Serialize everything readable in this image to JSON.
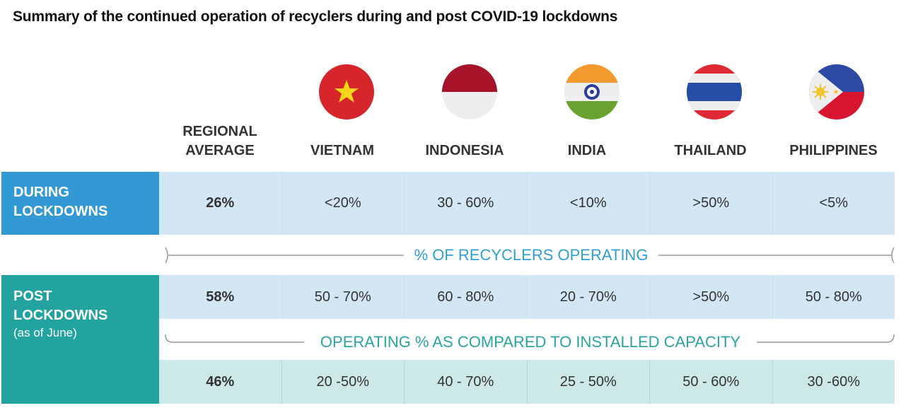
{
  "title": "Summary of the continued operation of recyclers during and post COVID-19 lockdowns",
  "colors": {
    "during_label_bg": "#3399d4",
    "post_label_bg": "#22a39f",
    "during_band_bg": "#d3e6f3",
    "post_band_bg": "#cce8e7",
    "bracket_blue": "#2e9fd3",
    "bracket_teal": "#2aa4a1"
  },
  "columns": {
    "regional_l1": "REGIONAL",
    "regional_l2": "AVERAGE",
    "vietnam": "VIETNAM",
    "indonesia": "INDONESIA",
    "india": "INDIA",
    "thailand": "THAILAND",
    "philippines": "PHILIPPINES"
  },
  "flags": [
    "vietnam-flag-icon",
    "indonesia-flag-icon",
    "india-flag-icon",
    "thailand-flag-icon",
    "philippines-flag-icon"
  ],
  "rows": {
    "during_l1": "DURING",
    "during_l2": "LOCKDOWNS",
    "post_l1": "POST",
    "post_l2": "LOCKDOWNS",
    "post_sub": "(as of June)"
  },
  "brackets": {
    "operating": "% OF RECYCLERS OPERATING",
    "capacity": "OPERATING % AS COMPARED TO INSTALLED CAPACITY"
  },
  "chart_data": {
    "type": "table",
    "title": "Summary of the continued operation of recyclers during and post COVID-19 lockdowns",
    "columns": [
      "REGIONAL AVERAGE",
      "VIETNAM",
      "INDONESIA",
      "INDIA",
      "THAILAND",
      "PHILIPPINES"
    ],
    "rows": [
      {
        "group": "DURING LOCKDOWNS",
        "metric": "% OF RECYCLERS OPERATING",
        "values": [
          "26%",
          "<20%",
          "30 - 60%",
          "<10%",
          ">50%",
          "<5%"
        ]
      },
      {
        "group": "POST LOCKDOWNS (as of June)",
        "metric": "% OF RECYCLERS OPERATING",
        "values": [
          "58%",
          "50 - 70%",
          "60 - 80%",
          "20 - 70%",
          ">50%",
          "50 - 80%"
        ]
      },
      {
        "group": "POST LOCKDOWNS (as of June)",
        "metric": "OPERATING % AS COMPARED TO INSTALLED CAPACITY",
        "values": [
          "46%",
          "20 -50%",
          "40 - 70%",
          "25 - 50%",
          "50 - 60%",
          "30 -60%"
        ]
      }
    ]
  }
}
